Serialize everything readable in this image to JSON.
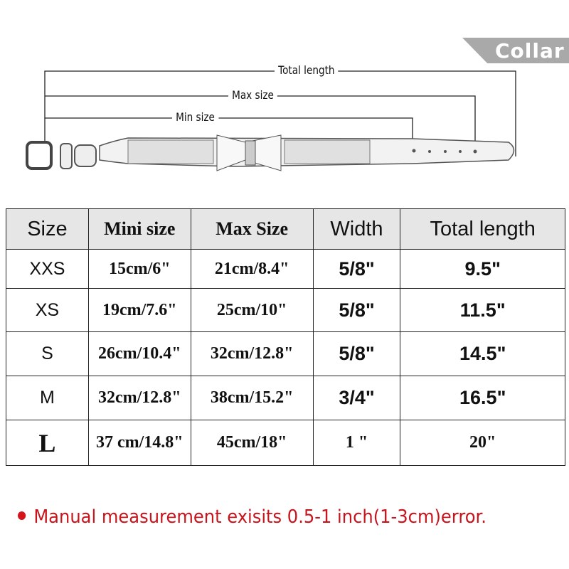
{
  "banner": {
    "label": "Collar"
  },
  "diagram": {
    "total_length": "Total length",
    "max_size": "Max size",
    "min_size": "Min size"
  },
  "table": {
    "headers": [
      "Size",
      "Mini size",
      "Max Size",
      "Width",
      "Total length"
    ],
    "rows": [
      [
        "XXS",
        "15cm/6\"",
        "21cm/8.4\"",
        "5/8\"",
        "9.5\""
      ],
      [
        "XS",
        "19cm/7.6\"",
        "25cm/10\"",
        "5/8\"",
        "11.5\""
      ],
      [
        "S",
        "26cm/10.4\"",
        "32cm/12.8\"",
        "5/8\"",
        "14.5\""
      ],
      [
        "M",
        "32cm/12.8\"",
        "38cm/15.2\"",
        "3/4\"",
        "16.5\""
      ],
      [
        "L",
        "37 cm/14.8\"",
        "45cm/18\"",
        "1 \"",
        "20\""
      ]
    ]
  },
  "note": {
    "text": "Manual measurement exisits 0.5-1 inch(1-3cm)error.",
    "color": "#c8141c"
  }
}
